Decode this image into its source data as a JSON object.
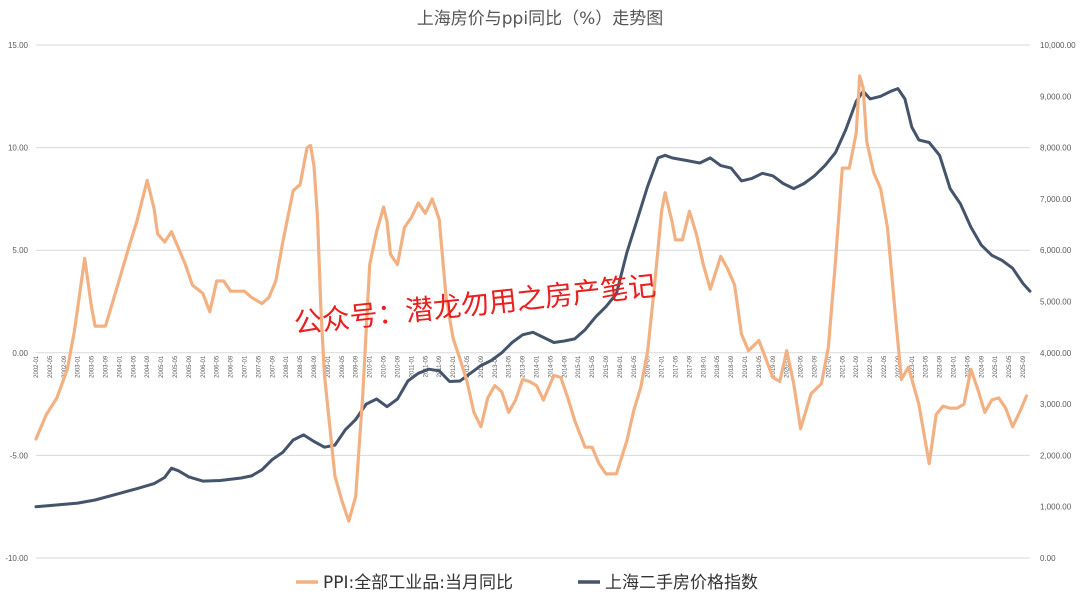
{
  "chart_data": {
    "type": "line",
    "title": "上海房价与ppi同比（%）走势图",
    "watermark": "公众号：潜龙勿用之房产笔记",
    "y_left": {
      "min": -10,
      "max": 15,
      "ticks": [
        "-10.00",
        "-5.00",
        "0.00",
        "5.00",
        "10.00",
        "15.00"
      ]
    },
    "y_right": {
      "min": 0,
      "max": 10000,
      "ticks": [
        "0.00",
        "1,000.00",
        "2,000.00",
        "3,000.00",
        "4,000.00",
        "5,000.00",
        "6,000.00",
        "7,000.00",
        "8,000.00",
        "9,000.00",
        "10,000.00"
      ]
    },
    "x_start": "2002-01",
    "x_end": "2025-11",
    "x_ticks": [
      "2002-01",
      "2002-05",
      "2002-09",
      "2003-01",
      "2003-05",
      "2003-09",
      "2004-01",
      "2004-05",
      "2004-09",
      "2005-01",
      "2005-05",
      "2005-09",
      "2006-01",
      "2006-05",
      "2006-09",
      "2007-01",
      "2007-05",
      "2007-09",
      "2008-01",
      "2008-05",
      "2008-09",
      "2009-01",
      "2009-05",
      "2009-09",
      "2010-01",
      "2010-05",
      "2010-09",
      "2011-01",
      "2011-05",
      "2011-09",
      "2012-01",
      "2012-05",
      "2012-09",
      "2013-01",
      "2013-05",
      "2013-09",
      "2014-01",
      "2014-05",
      "2014-09",
      "2015-01",
      "2015-05",
      "2015-09",
      "2016-01",
      "2016-05",
      "2016-09",
      "2017-01",
      "2017-05",
      "2017-09",
      "2018-01",
      "2018-05",
      "2018-09",
      "2019-01",
      "2019-05",
      "2019-09",
      "2020-01",
      "2020-05",
      "2020-09",
      "2021-01",
      "2021-05",
      "2021-09",
      "2022-01",
      "2022-05",
      "2022-09",
      "2023-01",
      "2023-05",
      "2023-09",
      "2024-01",
      "2024-05",
      "2024-09",
      "2025-01",
      "2025-05",
      "2025-09"
    ],
    "series": [
      {
        "name": "PPI:全部工业品:当月同比",
        "axis": "left",
        "color": "#f2b183",
        "points": [
          [
            "2002-01",
            -4.2
          ],
          [
            "2002-04",
            -3.0
          ],
          [
            "2002-07",
            -2.2
          ],
          [
            "2002-10",
            -0.8
          ],
          [
            "2002-12",
            1.0
          ],
          [
            "2003-03",
            4.6
          ],
          [
            "2003-05",
            2.2
          ],
          [
            "2003-06",
            1.3
          ],
          [
            "2003-09",
            1.3
          ],
          [
            "2003-12",
            3.0
          ],
          [
            "2004-04",
            5.3
          ],
          [
            "2004-06",
            6.4
          ],
          [
            "2004-09",
            8.4
          ],
          [
            "2004-11",
            7.0
          ],
          [
            "2004-12",
            5.8
          ],
          [
            "2005-02",
            5.4
          ],
          [
            "2005-04",
            5.9
          ],
          [
            "2005-06",
            5.1
          ],
          [
            "2005-08",
            4.3
          ],
          [
            "2005-10",
            3.3
          ],
          [
            "2006-01",
            2.9
          ],
          [
            "2006-03",
            2.0
          ],
          [
            "2006-05",
            3.5
          ],
          [
            "2006-07",
            3.5
          ],
          [
            "2006-09",
            3.0
          ],
          [
            "2006-11",
            3.0
          ],
          [
            "2007-01",
            3.0
          ],
          [
            "2007-03",
            2.7
          ],
          [
            "2007-06",
            2.4
          ],
          [
            "2007-08",
            2.7
          ],
          [
            "2007-10",
            3.5
          ],
          [
            "2007-12",
            5.4
          ],
          [
            "2008-03",
            7.9
          ],
          [
            "2008-05",
            8.2
          ],
          [
            "2008-07",
            10.0
          ],
          [
            "2008-08",
            10.1
          ],
          [
            "2008-09",
            9.1
          ],
          [
            "2008-10",
            6.6
          ],
          [
            "2008-11",
            2.0
          ],
          [
            "2008-12",
            -1.1
          ],
          [
            "2009-03",
            -6.0
          ],
          [
            "2009-05",
            -7.2
          ],
          [
            "2009-07",
            -8.2
          ],
          [
            "2009-09",
            -7.0
          ],
          [
            "2009-11",
            -2.1
          ],
          [
            "2010-01",
            4.3
          ],
          [
            "2010-03",
            5.9
          ],
          [
            "2010-05",
            7.1
          ],
          [
            "2010-06",
            6.4
          ],
          [
            "2010-07",
            4.8
          ],
          [
            "2010-09",
            4.3
          ],
          [
            "2010-11",
            6.1
          ],
          [
            "2011-01",
            6.6
          ],
          [
            "2011-03",
            7.3
          ],
          [
            "2011-05",
            6.8
          ],
          [
            "2011-07",
            7.5
          ],
          [
            "2011-09",
            6.5
          ],
          [
            "2011-11",
            2.7
          ],
          [
            "2012-01",
            0.7
          ],
          [
            "2012-03",
            -0.3
          ],
          [
            "2012-05",
            -1.4
          ],
          [
            "2012-07",
            -2.9
          ],
          [
            "2012-09",
            -3.6
          ],
          [
            "2012-11",
            -2.2
          ],
          [
            "2013-01",
            -1.6
          ],
          [
            "2013-03",
            -1.9
          ],
          [
            "2013-05",
            -2.9
          ],
          [
            "2013-07",
            -2.3
          ],
          [
            "2013-09",
            -1.3
          ],
          [
            "2013-11",
            -1.4
          ],
          [
            "2014-01",
            -1.6
          ],
          [
            "2014-03",
            -2.3
          ],
          [
            "2014-06",
            -1.1
          ],
          [
            "2014-08",
            -1.2
          ],
          [
            "2014-10",
            -2.2
          ],
          [
            "2014-12",
            -3.3
          ],
          [
            "2015-03",
            -4.6
          ],
          [
            "2015-05",
            -4.6
          ],
          [
            "2015-07",
            -5.4
          ],
          [
            "2015-09",
            -5.9
          ],
          [
            "2015-12",
            -5.9
          ],
          [
            "2016-03",
            -4.3
          ],
          [
            "2016-05",
            -2.8
          ],
          [
            "2016-07",
            -1.7
          ],
          [
            "2016-09",
            0.1
          ],
          [
            "2016-11",
            3.3
          ],
          [
            "2017-01",
            6.9
          ],
          [
            "2017-02",
            7.8
          ],
          [
            "2017-04",
            6.4
          ],
          [
            "2017-05",
            5.5
          ],
          [
            "2017-07",
            5.5
          ],
          [
            "2017-09",
            6.9
          ],
          [
            "2017-11",
            5.8
          ],
          [
            "2018-01",
            4.3
          ],
          [
            "2018-03",
            3.1
          ],
          [
            "2018-06",
            4.7
          ],
          [
            "2018-08",
            4.1
          ],
          [
            "2018-10",
            3.3
          ],
          [
            "2018-12",
            0.9
          ],
          [
            "2019-02",
            0.1
          ],
          [
            "2019-05",
            0.6
          ],
          [
            "2019-07",
            -0.3
          ],
          [
            "2019-09",
            -1.2
          ],
          [
            "2019-11",
            -1.4
          ],
          [
            "2020-01",
            0.1
          ],
          [
            "2020-03",
            -1.5
          ],
          [
            "2020-05",
            -3.7
          ],
          [
            "2020-08",
            -2.0
          ],
          [
            "2020-11",
            -1.5
          ],
          [
            "2021-01",
            0.3
          ],
          [
            "2021-03",
            4.4
          ],
          [
            "2021-05",
            9.0
          ],
          [
            "2021-07",
            9.0
          ],
          [
            "2021-09",
            10.7
          ],
          [
            "2021-10",
            13.5
          ],
          [
            "2021-11",
            12.9
          ],
          [
            "2021-12",
            10.3
          ],
          [
            "2022-02",
            8.8
          ],
          [
            "2022-04",
            8.0
          ],
          [
            "2022-06",
            6.1
          ],
          [
            "2022-08",
            2.3
          ],
          [
            "2022-10",
            -1.3
          ],
          [
            "2022-12",
            -0.7
          ],
          [
            "2023-03",
            -2.5
          ],
          [
            "2023-06",
            -5.4
          ],
          [
            "2023-08",
            -3.0
          ],
          [
            "2023-10",
            -2.6
          ],
          [
            "2023-12",
            -2.7
          ],
          [
            "2024-02",
            -2.7
          ],
          [
            "2024-04",
            -2.5
          ],
          [
            "2024-06",
            -0.8
          ],
          [
            "2024-08",
            -1.8
          ],
          [
            "2024-10",
            -2.9
          ],
          [
            "2024-12",
            -2.3
          ],
          [
            "2025-02",
            -2.2
          ],
          [
            "2025-04",
            -2.7
          ],
          [
            "2025-06",
            -3.6
          ],
          [
            "2025-08",
            -2.9
          ],
          [
            "2025-10",
            -2.1
          ]
        ]
      },
      {
        "name": "上海二手房价格指数",
        "axis": "right",
        "color": "#44546a",
        "points": [
          [
            "2002-01",
            1000
          ],
          [
            "2002-06",
            1030
          ],
          [
            "2003-01",
            1070
          ],
          [
            "2003-06",
            1130
          ],
          [
            "2004-01",
            1260
          ],
          [
            "2004-06",
            1350
          ],
          [
            "2004-11",
            1450
          ],
          [
            "2005-02",
            1570
          ],
          [
            "2005-04",
            1750
          ],
          [
            "2005-06",
            1700
          ],
          [
            "2005-09",
            1580
          ],
          [
            "2006-01",
            1500
          ],
          [
            "2006-06",
            1510
          ],
          [
            "2006-12",
            1560
          ],
          [
            "2007-03",
            1600
          ],
          [
            "2007-06",
            1720
          ],
          [
            "2007-09",
            1920
          ],
          [
            "2007-12",
            2060
          ],
          [
            "2008-03",
            2300
          ],
          [
            "2008-06",
            2400
          ],
          [
            "2008-09",
            2270
          ],
          [
            "2008-12",
            2160
          ],
          [
            "2009-03",
            2200
          ],
          [
            "2009-06",
            2500
          ],
          [
            "2009-09",
            2700
          ],
          [
            "2009-12",
            3000
          ],
          [
            "2010-03",
            3100
          ],
          [
            "2010-06",
            2950
          ],
          [
            "2010-09",
            3100
          ],
          [
            "2010-12",
            3450
          ],
          [
            "2011-03",
            3600
          ],
          [
            "2011-06",
            3680
          ],
          [
            "2011-09",
            3650
          ],
          [
            "2011-12",
            3440
          ],
          [
            "2012-03",
            3450
          ],
          [
            "2012-06",
            3600
          ],
          [
            "2012-09",
            3750
          ],
          [
            "2012-12",
            3850
          ],
          [
            "2013-03",
            4000
          ],
          [
            "2013-06",
            4200
          ],
          [
            "2013-09",
            4350
          ],
          [
            "2013-12",
            4400
          ],
          [
            "2014-03",
            4300
          ],
          [
            "2014-06",
            4200
          ],
          [
            "2014-09",
            4230
          ],
          [
            "2014-12",
            4270
          ],
          [
            "2015-03",
            4450
          ],
          [
            "2015-06",
            4700
          ],
          [
            "2015-09",
            4900
          ],
          [
            "2015-12",
            5150
          ],
          [
            "2016-03",
            5950
          ],
          [
            "2016-06",
            6600
          ],
          [
            "2016-09",
            7250
          ],
          [
            "2016-12",
            7800
          ],
          [
            "2017-02",
            7850
          ],
          [
            "2017-04",
            7800
          ],
          [
            "2017-08",
            7750
          ],
          [
            "2017-12",
            7700
          ],
          [
            "2018-03",
            7800
          ],
          [
            "2018-06",
            7650
          ],
          [
            "2018-09",
            7600
          ],
          [
            "2018-12",
            7350
          ],
          [
            "2019-03",
            7400
          ],
          [
            "2019-06",
            7500
          ],
          [
            "2019-09",
            7450
          ],
          [
            "2019-12",
            7300
          ],
          [
            "2020-03",
            7200
          ],
          [
            "2020-06",
            7300
          ],
          [
            "2020-09",
            7450
          ],
          [
            "2020-12",
            7650
          ],
          [
            "2021-03",
            7900
          ],
          [
            "2021-06",
            8350
          ],
          [
            "2021-09",
            8900
          ],
          [
            "2021-11",
            9100
          ],
          [
            "2022-01",
            8950
          ],
          [
            "2022-04",
            9000
          ],
          [
            "2022-07",
            9100
          ],
          [
            "2022-09",
            9150
          ],
          [
            "2022-11",
            8950
          ],
          [
            "2023-01",
            8400
          ],
          [
            "2023-03",
            8150
          ],
          [
            "2023-06",
            8100
          ],
          [
            "2023-09",
            7850
          ],
          [
            "2023-12",
            7200
          ],
          [
            "2024-03",
            6900
          ],
          [
            "2024-06",
            6450
          ],
          [
            "2024-09",
            6100
          ],
          [
            "2024-12",
            5900
          ],
          [
            "2025-03",
            5800
          ],
          [
            "2025-06",
            5650
          ],
          [
            "2025-09",
            5350
          ],
          [
            "2025-11",
            5200
          ]
        ]
      }
    ]
  }
}
